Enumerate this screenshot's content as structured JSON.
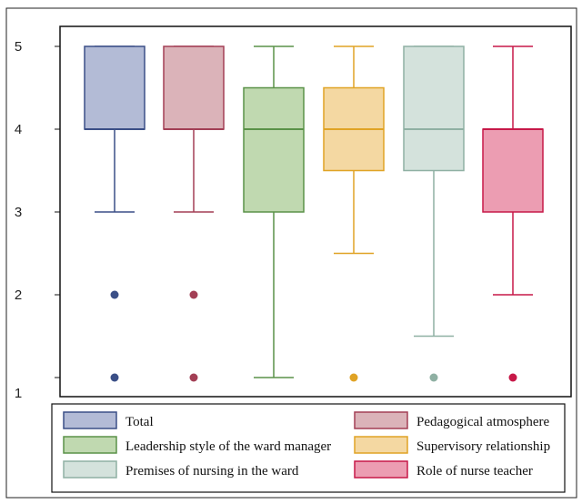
{
  "chart_data": {
    "type": "box",
    "title": "",
    "xlabel": "",
    "ylabel": "",
    "ylim": [
      1,
      5
    ],
    "yticks": [
      "1",
      "2",
      "3",
      "4",
      "5"
    ],
    "grid": false,
    "legend_position": "bottom",
    "series": [
      {
        "name": "Total",
        "min": 3,
        "q1": 4,
        "median": 4,
        "q3": 5,
        "max": 5,
        "outliers": [
          2,
          1
        ],
        "fill": "#b3bbd6",
        "stroke": "#3b4f87"
      },
      {
        "name": "Pedagogical  atmosphere",
        "min": 3,
        "q1": 4,
        "median": 4,
        "q3": 5,
        "max": 5,
        "outliers": [
          2,
          1
        ],
        "fill": "#dbb3b9",
        "stroke": "#a33f55"
      },
      {
        "name": "Leadership style of the ward manager",
        "min": 1,
        "q1": 3,
        "median": 4,
        "q3": 4.5,
        "max": 5,
        "outliers": [],
        "fill": "#c0d9b0",
        "stroke": "#5a9248"
      },
      {
        "name": "Supervisory relationship",
        "min": 2.5,
        "q1": 3.5,
        "median": 4,
        "q3": 4.5,
        "max": 5,
        "outliers": [
          1
        ],
        "fill": "#f4d8a2",
        "stroke": "#e0a325"
      },
      {
        "name": "Premises of nursing in the ward",
        "min": 1.5,
        "q1": 3.5,
        "median": 4,
        "q3": 5,
        "max": 5,
        "outliers": [
          1
        ],
        "fill": "#d4e2dc",
        "stroke": "#8fb0a3"
      },
      {
        "name": "Role of nurse teacher",
        "min": 2,
        "q1": 3,
        "median": 4,
        "q3": 4,
        "max": 5,
        "outliers": [
          1
        ],
        "fill": "#ec9db2",
        "stroke": "#c71848"
      }
    ]
  }
}
